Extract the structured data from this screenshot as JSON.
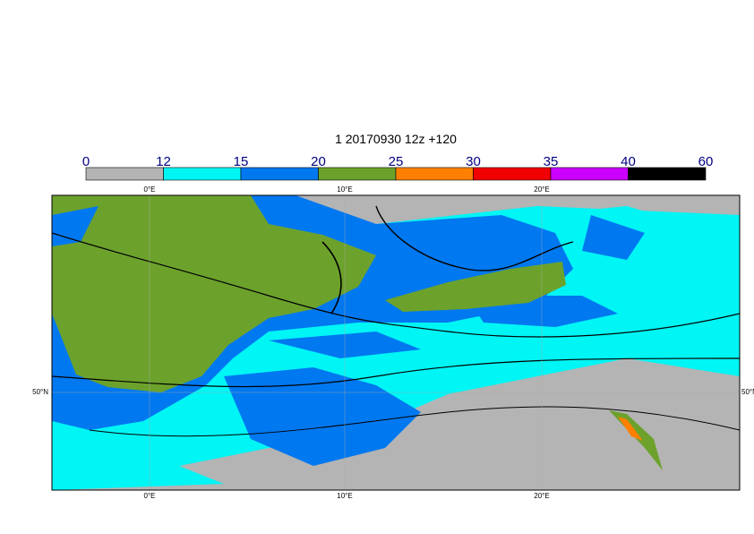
{
  "title": "1 20170930 12z +120",
  "colorbar": {
    "labels": [
      0,
      12,
      15,
      20,
      25,
      30,
      35,
      40,
      60
    ],
    "colors": [
      "#b4b4b4",
      "#00f5f5",
      "#0078f0",
      "#6ca22c",
      "#ff8000",
      "#f00000",
      "#cc00ff",
      "#000000"
    ]
  },
  "map": {
    "lon_labels": [
      "0°E",
      "10°E",
      "20°E"
    ],
    "lat_labels": [
      "50°N"
    ]
  }
}
